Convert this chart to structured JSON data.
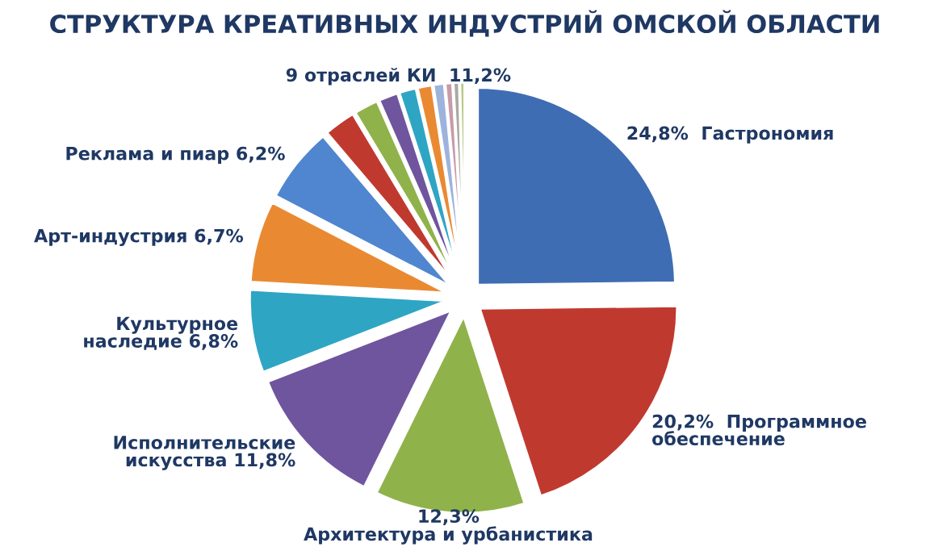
{
  "chart_data": {
    "type": "pie",
    "title": "СТРУКТУРА КРЕАТИВНЫХ ИНДУСТРИЙ ОМСКОЙ ОБЛАСТИ",
    "categories": [
      "Гастрономия",
      "Программное\nобеспечение",
      "Архитектура и урбанистика",
      "Исполнительские\nискусства",
      "Культурное\nнаследие",
      "Арт-индустрия",
      "Реклама и пиар",
      null,
      null,
      null,
      null,
      null,
      null,
      null,
      null,
      null
    ],
    "values": [
      24.8,
      20.2,
      12.3,
      11.8,
      6.8,
      6.7,
      6.2,
      2.6,
      2.0,
      1.6,
      1.4,
      1.2,
      0.9,
      0.6,
      0.5,
      0.4
    ],
    "value_labels": [
      "24,8%",
      "20,2%",
      "12,3%",
      "11,8%",
      "6,8%",
      "6,7%",
      "6,2%",
      null,
      null,
      null,
      null,
      null,
      null,
      null,
      null,
      null
    ],
    "colors": [
      "#3f6db3",
      "#c0392f",
      "#8fb24a",
      "#6f559e",
      "#2fa5c4",
      "#e98a33",
      "#4f86cf",
      "#c0392f",
      "#8fb24a",
      "#6f559e",
      "#2fa5c4",
      "#e98a33",
      "#9db3dc",
      "#c99aa8",
      "#a9a9a0",
      "#b8c98a"
    ],
    "annotations": [
      "9 отраслей КИ  11,2%"
    ]
  }
}
